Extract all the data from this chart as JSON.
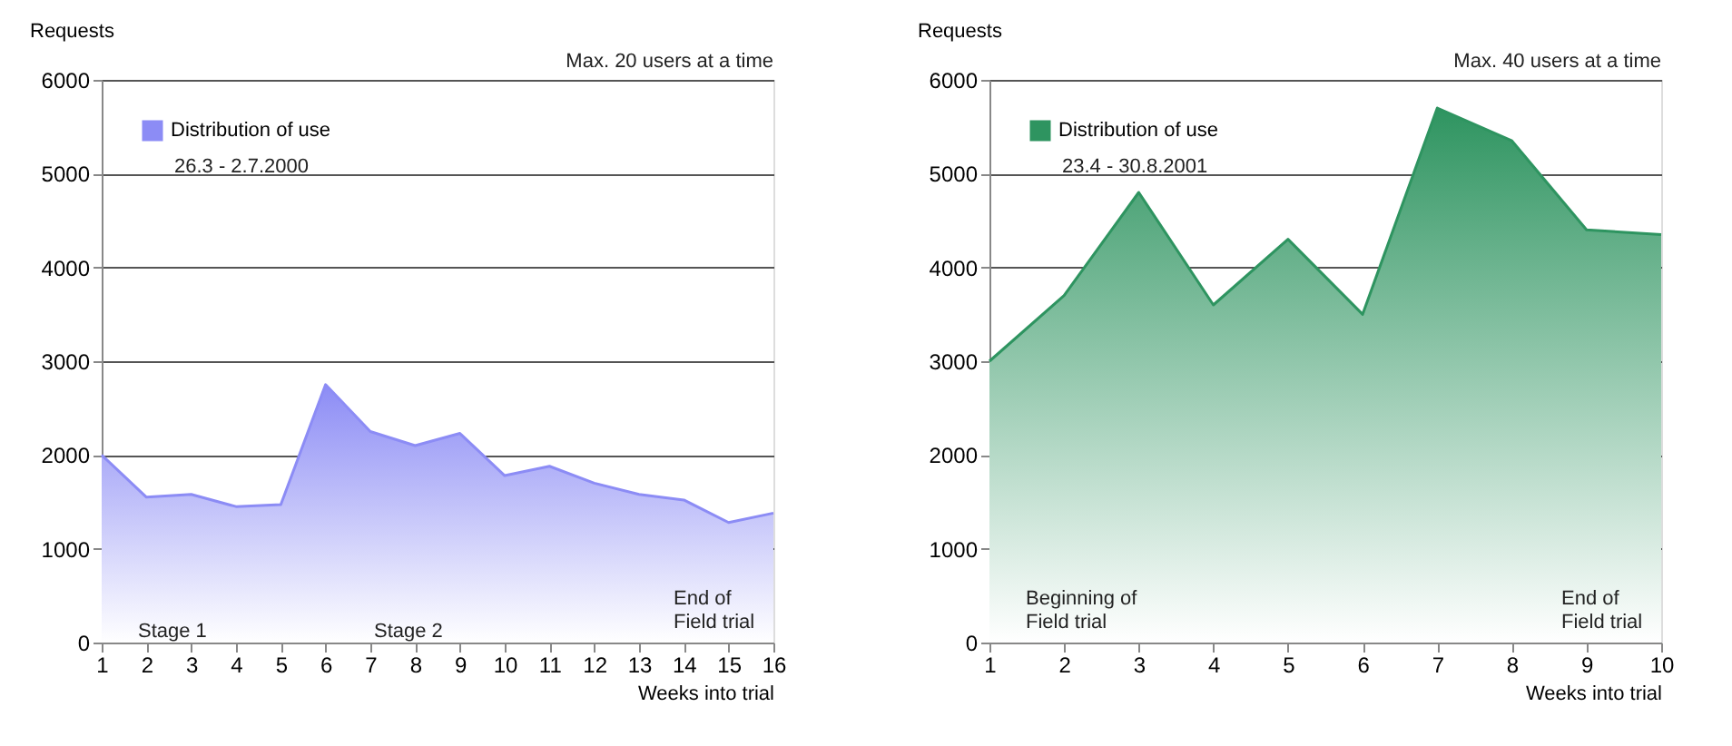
{
  "chart_data": [
    {
      "type": "area",
      "ylabel": "Requests",
      "xlabel": "Weeks into trial",
      "x": [
        1,
        2,
        3,
        4,
        5,
        6,
        7,
        8,
        9,
        10,
        11,
        12,
        13,
        14,
        15,
        16
      ],
      "series": [
        {
          "name": "Distribution of use",
          "color": "#8c8cf5",
          "values": [
            2000,
            1550,
            1580,
            1450,
            1470,
            2750,
            2250,
            2100,
            2230,
            1780,
            1880,
            1700,
            1580,
            1520,
            1280,
            1380
          ]
        }
      ],
      "xlim": [
        1,
        16
      ],
      "xticks": [
        1,
        2,
        3,
        4,
        5,
        6,
        7,
        8,
        9,
        10,
        11,
        12,
        13,
        14,
        15,
        16
      ],
      "ylim": [
        0,
        6000
      ],
      "yticks": [
        0,
        1000,
        2000,
        3000,
        4000,
        5000,
        6000
      ],
      "grid": "y",
      "legend": "top left",
      "annotations": [
        "Max. 20 users at a time",
        "26.3 - 2.7.2000",
        "Stage 1",
        "Stage 2",
        "End of\nField trial"
      ]
    },
    {
      "type": "area",
      "ylabel": "Requests",
      "xlabel": "Weeks into trial",
      "x": [
        1,
        2,
        3,
        4,
        5,
        6,
        7,
        8,
        9,
        10
      ],
      "series": [
        {
          "name": "Distribution of use",
          "color": "#2e9460",
          "values": [
            3000,
            3700,
            4800,
            3600,
            4300,
            3500,
            5700,
            5350,
            4400,
            4350
          ]
        }
      ],
      "xlim": [
        1,
        10
      ],
      "xticks": [
        1,
        2,
        3,
        4,
        5,
        6,
        7,
        8,
        9,
        10
      ],
      "ylim": [
        0,
        6000
      ],
      "yticks": [
        0,
        1000,
        2000,
        3000,
        4000,
        5000,
        6000
      ],
      "grid": "y",
      "legend": "top left",
      "annotations": [
        "Max. 40 users at a time",
        "23.4 - 30.8.2001",
        "Beginning of\nField trial",
        "End of\nField trial"
      ]
    }
  ]
}
